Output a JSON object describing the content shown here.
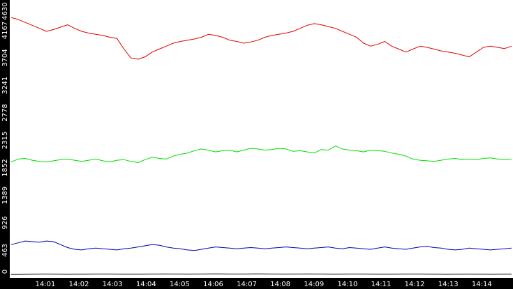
{
  "chart_data": {
    "type": "line",
    "grid": false,
    "legend": "none",
    "ylim": [
      0,
      4630
    ],
    "y_ticks": [
      0,
      463,
      926,
      1389,
      1852,
      2315,
      2778,
      3241,
      3704,
      4167,
      4630
    ],
    "x_ticks": [
      "14:01",
      "14:02",
      "14:03",
      "14:04",
      "14:05",
      "14:06",
      "14:07",
      "14:08",
      "14:09",
      "14:10",
      "14:11",
      "14:12",
      "14:13",
      "14:14"
    ],
    "colors": {
      "background": "#ffffff",
      "axis_bar": "#000000",
      "tick_text": "#ffffff",
      "red_series": "#e00000",
      "green_series": "#00e000",
      "blue_series": "#0000b0",
      "black_series": "#000000"
    },
    "series": [
      {
        "color": "#e00000",
        "values": [
          4380,
          4350,
          4300,
          4250,
          4200,
          4150,
          4180,
          4220,
          4260,
          4200,
          4150,
          4120,
          4100,
          4080,
          4050,
          4030,
          3850,
          3700,
          3680,
          3720,
          3800,
          3850,
          3900,
          3950,
          3980,
          4000,
          4020,
          4050,
          4100,
          4080,
          4050,
          4000,
          3980,
          3950,
          3970,
          4000,
          4050,
          4080,
          4100,
          4120,
          4150,
          4200,
          4250,
          4280,
          4260,
          4230,
          4200,
          4150,
          4100,
          4050,
          3950,
          3900,
          3930,
          3980,
          3900,
          3850,
          3800,
          3850,
          3900,
          3880,
          3850,
          3820,
          3800,
          3780,
          3750,
          3720,
          3800,
          3880,
          3900,
          3880,
          3860,
          3900
        ]
      },
      {
        "color": "#00e000",
        "values": [
          1950,
          2000,
          2010,
          1980,
          1960,
          1950,
          1970,
          1990,
          2000,
          1980,
          1960,
          1980,
          2000,
          1970,
          1950,
          1980,
          1990,
          1960,
          1940,
          1990,
          2030,
          2010,
          2000,
          2050,
          2080,
          2100,
          2140,
          2170,
          2150,
          2120,
          2140,
          2150,
          2120,
          2150,
          2180,
          2170,
          2150,
          2160,
          2180,
          2170,
          2130,
          2140,
          2120,
          2100,
          2160,
          2150,
          2220,
          2170,
          2150,
          2140,
          2120,
          2150,
          2140,
          2130,
          2100,
          2080,
          2050,
          2000,
          1980,
          1970,
          1960,
          1980,
          2000,
          2010,
          1990,
          2000,
          1990,
          2010,
          2020,
          2000,
          1990,
          2000
        ]
      },
      {
        "color": "#0000b0",
        "values": [
          560,
          590,
          620,
          610,
          600,
          620,
          610,
          560,
          510,
          480,
          470,
          490,
          500,
          490,
          480,
          470,
          490,
          500,
          520,
          540,
          560,
          550,
          520,
          500,
          490,
          470,
          460,
          480,
          500,
          520,
          510,
          500,
          490,
          500,
          510,
          500,
          490,
          500,
          510,
          520,
          510,
          500,
          490,
          500,
          510,
          520,
          500,
          490,
          510,
          500,
          490,
          480,
          500,
          520,
          500,
          490,
          480,
          500,
          520,
          530,
          510,
          500,
          480,
          470,
          480,
          500,
          490,
          480,
          470,
          480,
          490,
          500
        ]
      },
      {
        "color": "#000000",
        "values": [
          55,
          58,
          60,
          62,
          63,
          64,
          63,
          62,
          60,
          61,
          62,
          63,
          64,
          65,
          64,
          63,
          62,
          61,
          62,
          63,
          64,
          65,
          66,
          65,
          64,
          63,
          64,
          65,
          66,
          67,
          66,
          65,
          64,
          65,
          66,
          67,
          66,
          65,
          64,
          63,
          64,
          65,
          66,
          65,
          64,
          63,
          62,
          63,
          64,
          65,
          64,
          63,
          62,
          61,
          62,
          63,
          64,
          65,
          64,
          63,
          62,
          61,
          60,
          61,
          62,
          63,
          62,
          61,
          60,
          61,
          62,
          63
        ]
      }
    ]
  }
}
